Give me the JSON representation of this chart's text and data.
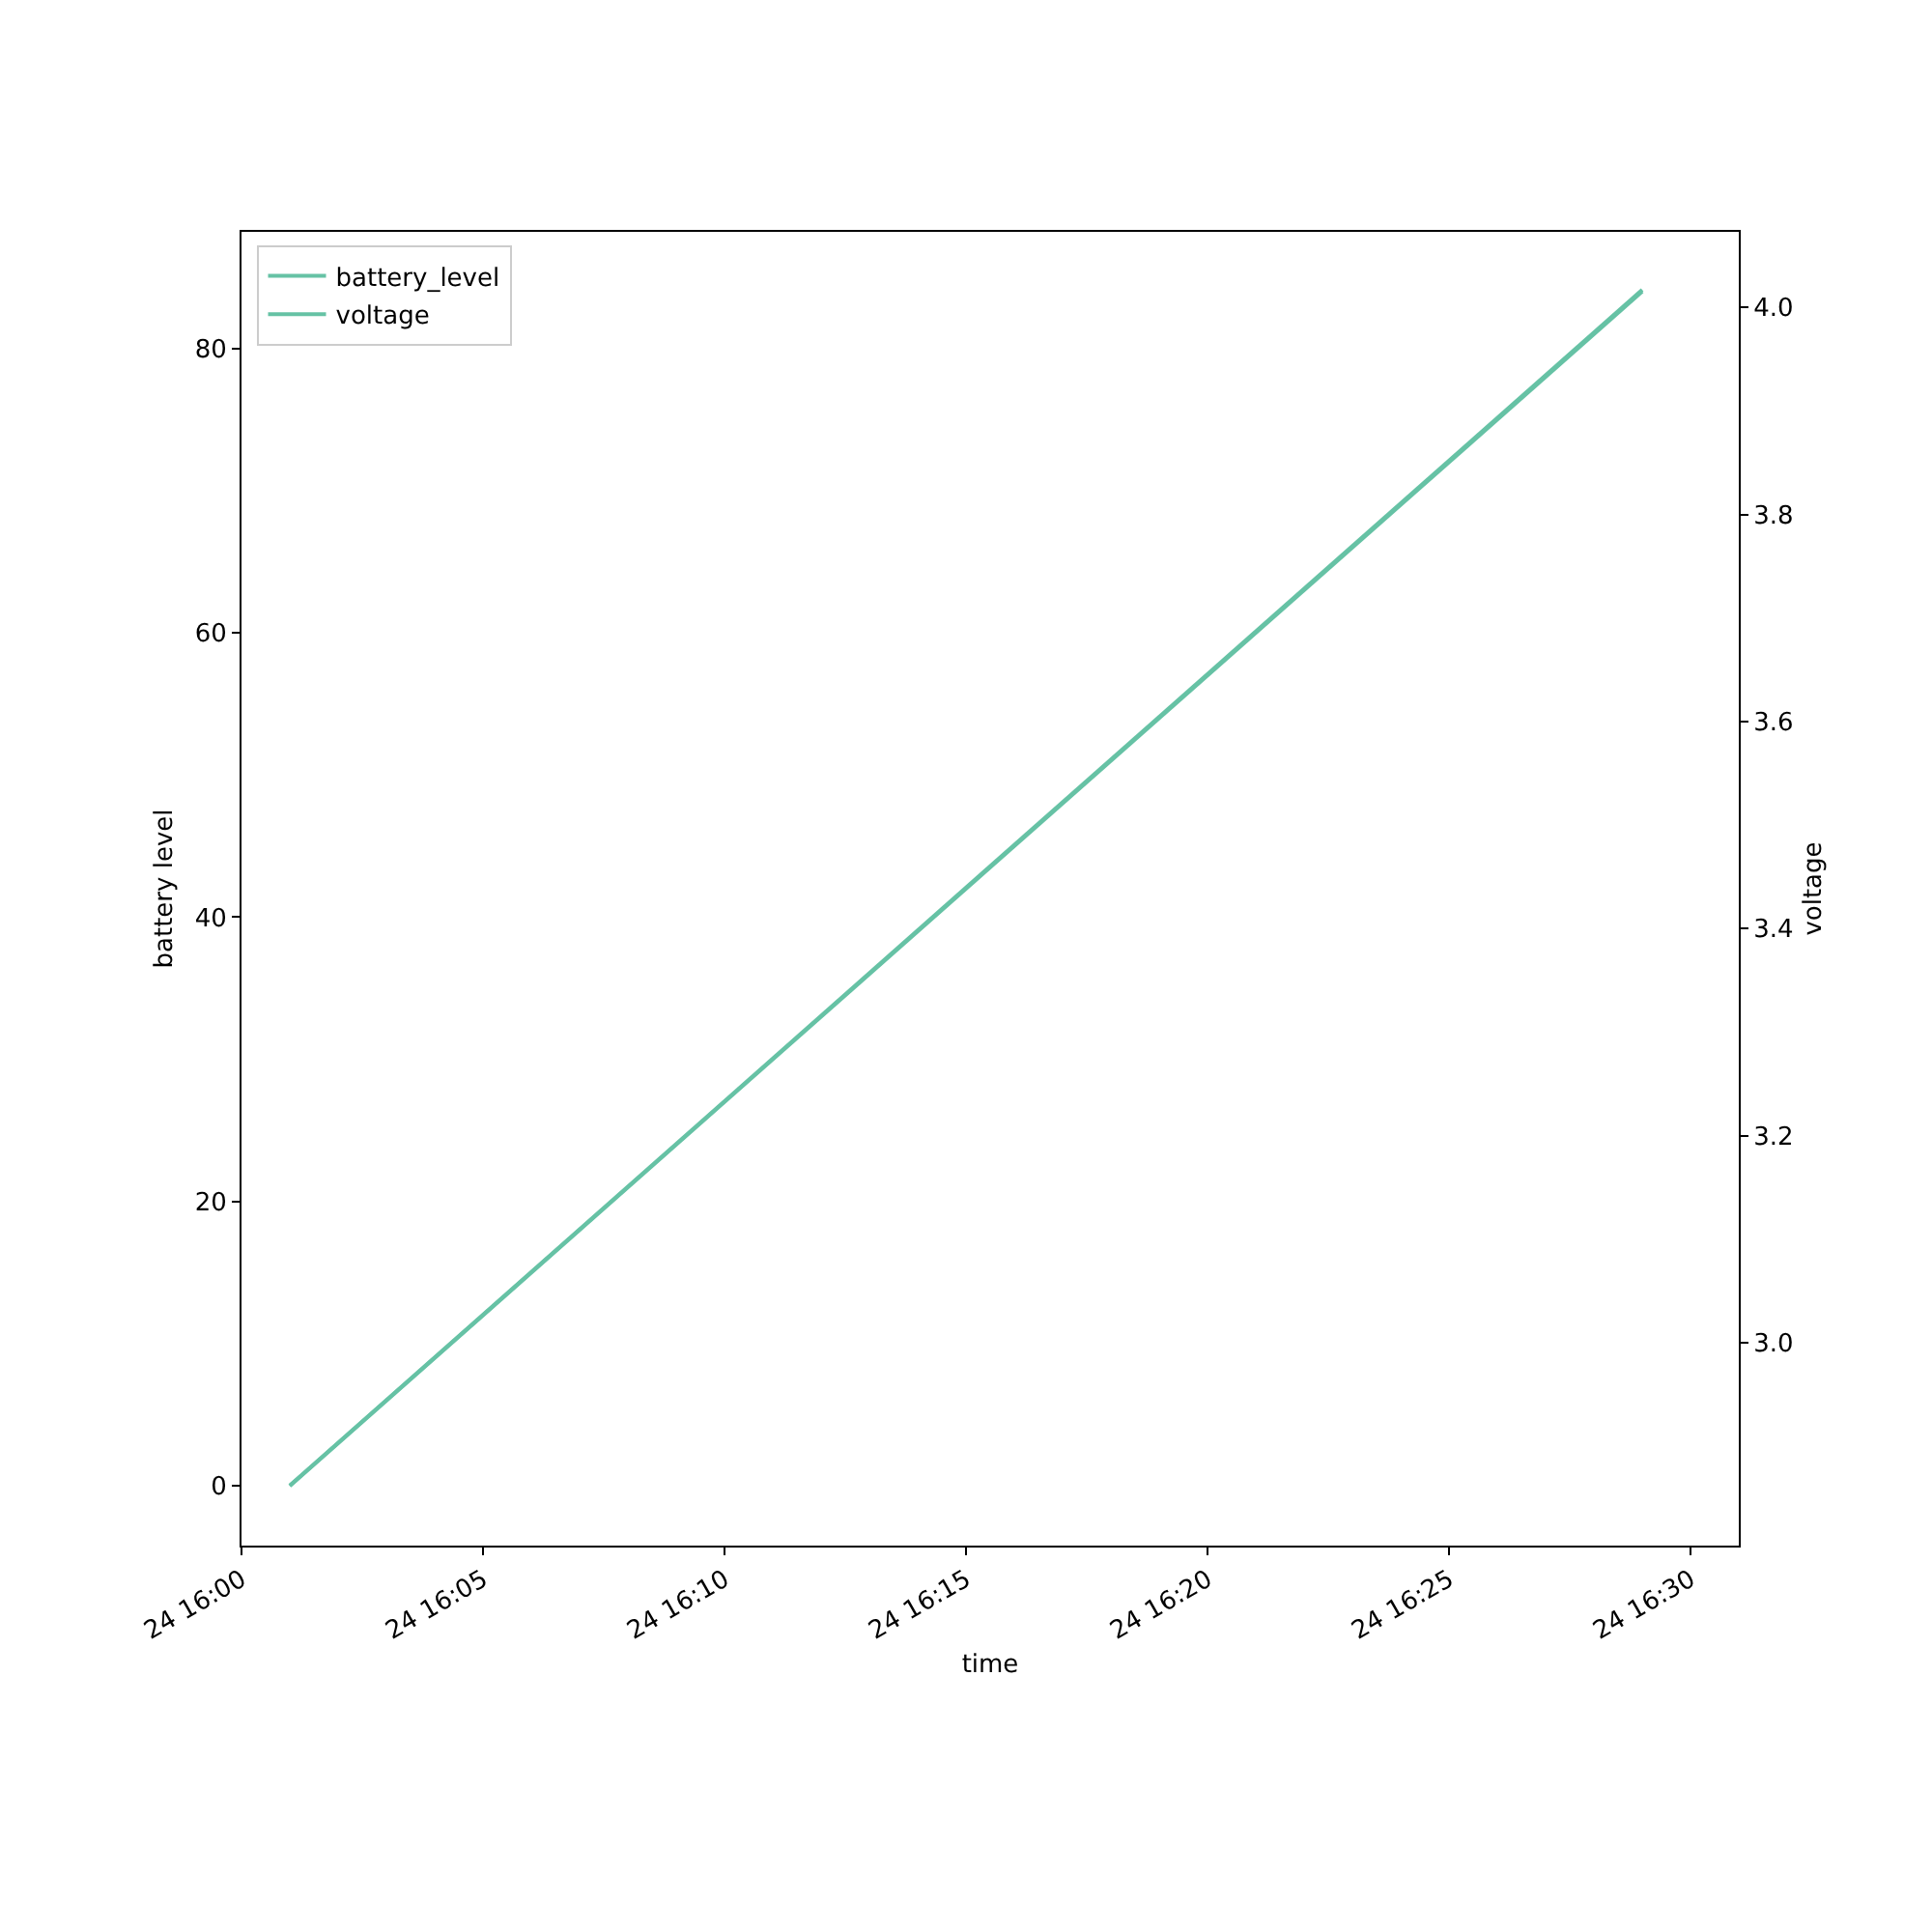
{
  "chart_data": {
    "type": "line",
    "xlabel": "time",
    "ylabel": "battery level",
    "y2label": "voltage",
    "x": [
      "--01-24T16:01",
      "--01-24T16:29"
    ],
    "series": [
      {
        "name": "battery_level",
        "color": "#66c2a5",
        "values": [
          0,
          84
        ]
      },
      {
        "name": "voltage",
        "color": "#66c2a5",
        "axis": "y2",
        "values": [
          2.862,
          4.017
        ]
      }
    ],
    "xlim": [
      "--01-24T16:00",
      "--01-24T16:31"
    ],
    "xticks": [
      {
        "value": "--01-24T16:00",
        "label": "24 16:00"
      },
      {
        "value": "--01-24T16:05",
        "label": "24 16:05"
      },
      {
        "value": "--01-24T16:10",
        "label": "24 16:10"
      },
      {
        "value": "--01-24T16:15",
        "label": "24 16:15"
      },
      {
        "value": "--01-24T16:20",
        "label": "24 16:20"
      },
      {
        "value": "--01-24T16:25",
        "label": "24 16:25"
      },
      {
        "value": "--01-24T16:30",
        "label": "24 16:30"
      }
    ],
    "ylim": [
      -4.2,
      88.2
    ],
    "yticks": [
      0,
      20,
      40,
      60,
      80
    ],
    "y2lim": [
      2.804,
      4.073
    ],
    "y2ticks": [
      {
        "value": 3.0,
        "label": "3.0"
      },
      {
        "value": 3.2,
        "label": "3.2"
      },
      {
        "value": 3.4,
        "label": "3.4"
      },
      {
        "value": 3.6,
        "label": "3.6"
      },
      {
        "value": 3.8,
        "label": "3.8"
      },
      {
        "value": 4.0,
        "label": "4.0"
      }
    ],
    "legend": "top left",
    "grid": false,
    "marker": "none",
    "line_style": "solid"
  }
}
